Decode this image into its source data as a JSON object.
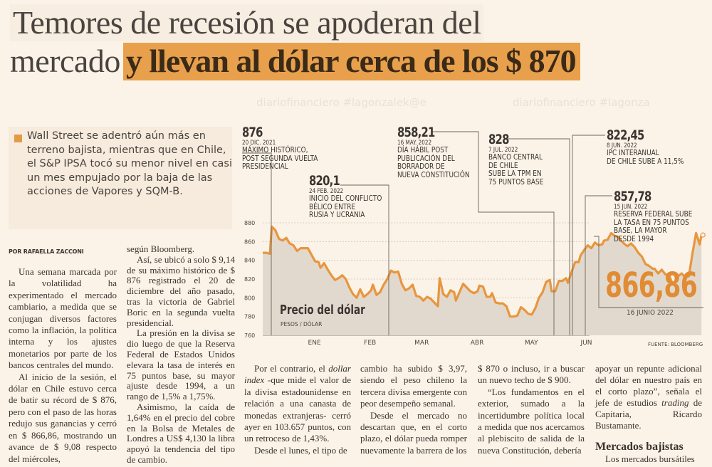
{
  "headline": {
    "line1": "Temores de recesión se apoderan del",
    "line2_plain": "mercado",
    "line2_highlight": "y llevan al dólar cerca de los $ 870"
  },
  "lead": "Wall Street se adentró aún más en terreno bajista, mientras que en Chile, el S&P IPSA tocó su menor nivel en casi un mes empujado por la baja de las acciones de Vapores y SQM-B.",
  "watermark": [
    "diariofinanciero #lagonzalek@e",
    "diariofinanciero #lagonza"
  ],
  "byline": "POR RAFAELLA ZACCONI",
  "columns": {
    "col1": [
      "Una semana marcada por la volatilidad ha experimentado el mercado cambiario, a medida que se conjugan diversos factores como la inflación, la política interna y los ajustes monetarios por parte de los bancos centrales del mundo.",
      "Al inicio de la sesión, el dólar en Chile estuvo cerca de batir su récord de $ 876, pero con el paso de las horas redujo sus ganancias y cerró en $ 866,86, mostrando un avance de $ 9,08 respecto del miércoles,"
    ],
    "col2_first": "según Bloomberg.",
    "col2": [
      "Así, se ubicó a solo $ 9,14 de su máximo histórico de $ 876 registrado el 20 de diciembre del año pasado, tras la victoria de Gabriel Boric en la segunda vuelta presidencial.",
      "La presión en la divisa se dio luego de que la Reserva Federal de Estados Unidos elevara la tasa de interés en 75 puntos base, su mayor ajuste desde 1994, a un rango de 1,5% a 1,75%.",
      "Asimismo, la caída de 1,64% en el precio del cobre en la Bolsa de Metales de Londres a US$ 4,130 la libra apoyó la tendencia del tipo de cambio."
    ],
    "col3": [
      "Por el contrario, el dollar index -que mide el valor de la divisa estadounidense en relación a una canasta de monedas extranjeras- cerró ayer en 103.657 puntos, con un retroceso de 1,43%.",
      "Desde el lunes, el tipo de"
    ],
    "col4_first": "cambio ha subido $ 3,97, siendo el peso chileno la tercera divisa emergente con peor desempeño semanal.",
    "col4": [
      "Desde el mercado no descartan que, en el corto plazo, el dólar pueda romper nuevamente la barrera de los"
    ],
    "col5_first": "$ 870 o incluso, ir a buscar un nuevo techo de $ 900.",
    "col5": [
      "“Los fundamentos en el exterior, sumado a la incertidumbre política local a medida que nos acercamos al plebiscito de salida de la nueva Constitución, debería"
    ],
    "col6_first": "apoyar un repunte adicional del dólar en nuestro país en el corto plazo”, señala el jefe de estudios trading de Capitaria, Ricardo Bustamante.",
    "col6_subhead": "Mercados bajistas",
    "col6": [
      "Los mercados bursátiles"
    ]
  },
  "chart_data": {
    "type": "area",
    "title": "Precio del dólar",
    "ylabel": "PESOS / DÓLAR",
    "source": "FUENTE: BLOOMBERG",
    "ylim": [
      760,
      880
    ],
    "yticks": [
      880,
      860,
      840,
      820,
      800,
      780,
      760
    ],
    "xticks": [
      "ENE",
      "FEB",
      "MAR",
      "ABR",
      "MAY",
      "JUN"
    ],
    "grid": true,
    "x_range_days": [
      -14,
      167
    ],
    "x_tick_days": [
      15,
      46,
      74,
      105,
      135,
      166
    ],
    "series": [
      {
        "name": "Precio del dólar",
        "color": "#e8963e",
        "points": [
          [
            -14,
            848
          ],
          [
            -12,
            848
          ],
          [
            -10,
            847
          ],
          [
            -9,
            876
          ],
          [
            -7,
            872
          ],
          [
            -5,
            863
          ],
          [
            -3,
            861
          ],
          [
            -1,
            864
          ],
          [
            1,
            858
          ],
          [
            3,
            856
          ],
          [
            5,
            850
          ],
          [
            7,
            853
          ],
          [
            9,
            853
          ],
          [
            11,
            853
          ],
          [
            13,
            846
          ],
          [
            15,
            839
          ],
          [
            17,
            838
          ],
          [
            18,
            832
          ],
          [
            20,
            837
          ],
          [
            22,
            830
          ],
          [
            24,
            824
          ],
          [
            26,
            819
          ],
          [
            28,
            821
          ],
          [
            30,
            824
          ],
          [
            32,
            820
          ],
          [
            34,
            811
          ],
          [
            36,
            804
          ],
          [
            38,
            800
          ],
          [
            40,
            809
          ],
          [
            42,
            801
          ],
          [
            44,
            804
          ],
          [
            46,
            808
          ],
          [
            47,
            814
          ],
          [
            49,
            803
          ],
          [
            51,
            806
          ],
          [
            53,
            814
          ],
          [
            55,
            820
          ],
          [
            57,
            829
          ],
          [
            59,
            827
          ],
          [
            61,
            828
          ],
          [
            63,
            815
          ],
          [
            65,
            808
          ],
          [
            67,
            810
          ],
          [
            69,
            814
          ],
          [
            71,
            802
          ],
          [
            73,
            801
          ],
          [
            75,
            797
          ],
          [
            77,
            801
          ],
          [
            79,
            799
          ],
          [
            81,
            795
          ],
          [
            83,
            791
          ],
          [
            84,
            821
          ],
          [
            86,
            804
          ],
          [
            88,
            801
          ],
          [
            90,
            808
          ],
          [
            92,
            806
          ],
          [
            93,
            797
          ],
          [
            95,
            806
          ],
          [
            97,
            815
          ],
          [
            99,
            811
          ],
          [
            101,
            807
          ],
          [
            103,
            805
          ],
          [
            105,
            807
          ],
          [
            106,
            813
          ],
          [
            108,
            812
          ],
          [
            110,
            801
          ],
          [
            112,
            801
          ],
          [
            113,
            805
          ],
          [
            115,
            795
          ],
          [
            117,
            794
          ],
          [
            119,
            794
          ],
          [
            121,
            791
          ],
          [
            123,
            780
          ],
          [
            125,
            780
          ],
          [
            127,
            781
          ],
          [
            129,
            790
          ],
          [
            131,
            787
          ],
          [
            133,
            783
          ],
          [
            135,
            782
          ],
          [
            137,
            789
          ],
          [
            139,
            800
          ],
          [
            141,
            806
          ],
          [
            143,
            817
          ],
          [
            145,
            819
          ],
          [
            146,
            807
          ],
          [
            148,
            807
          ],
          [
            150,
            818
          ],
          [
            152,
            818
          ],
          [
            154,
            821
          ],
          [
            155,
            816
          ],
          [
            157,
            827
          ],
          [
            159,
            838
          ],
          [
            161,
            838
          ],
          [
            162,
            845
          ],
          [
            164,
            851
          ],
          [
            166,
            856
          ],
          [
            168,
            853
          ],
          [
            170,
            859
          ],
          [
            172,
            856
          ],
          [
            174,
            857
          ],
          [
            175,
            861
          ],
          [
            177,
            862
          ],
          [
            179,
            869
          ],
          [
            181,
            866
          ],
          [
            183,
            865
          ],
          [
            184,
            862
          ],
          [
            186,
            858
          ],
          [
            188,
            855
          ],
          [
            190,
            858
          ],
          [
            192,
            854
          ],
          [
            194,
            848
          ],
          [
            196,
            844
          ],
          [
            198,
            836
          ],
          [
            200,
            834
          ],
          [
            202,
            831
          ],
          [
            203,
            831
          ],
          [
            205,
            826
          ],
          [
            207,
            830
          ],
          [
            209,
            825
          ],
          [
            211,
            824
          ],
          [
            213,
            815
          ],
          [
            214,
            815
          ],
          [
            216,
            823
          ],
          [
            218,
            826
          ],
          [
            220,
            822
          ],
          [
            222,
            823
          ],
          [
            224,
            847
          ],
          [
            226,
            869
          ],
          [
            228,
            857
          ],
          [
            229,
            867
          ]
        ]
      }
    ],
    "annotations": [
      {
        "value": "876",
        "date": "20 DIC. 2021",
        "text": [
          "MÁXIMO HISTÓRICO,",
          "POST SEGUNDA VUELTA",
          "PRESIDENCIAL"
        ]
      },
      {
        "value": "820,1",
        "date": "24 FEB. 2022",
        "text": [
          "INICIO DEL CONFLICTO",
          "BÉLICO ENTRE",
          "RUSIA Y UCRANIA"
        ]
      },
      {
        "value": "858,21",
        "date": "16 MAY. 2022",
        "text": [
          "DÍA HÁBIL POST",
          "PUBLICACIÓN DEL",
          "BORRADOR DE",
          "NUEVA CONSTITUCIÓN"
        ]
      },
      {
        "value": "828",
        "date": "7 JUL. 2022",
        "text": [
          "BANCO CENTRAL",
          "DE CHILE",
          "SUBE LA TPM EN",
          "75 PUNTOS BASE"
        ]
      },
      {
        "value": "822,45",
        "date": "8 JUN. 2022",
        "text": [
          "IPC INTERANUAL",
          "DE CHILE SUBE A 11,5%"
        ]
      },
      {
        "value": "857,78",
        "date": "15 JUN. 2022",
        "text": [
          "RESERVA FEDERAL SUBE",
          "LA TASA EN 75 PUNTOS",
          "BASE, LA MAYOR",
          "DESDE 1994"
        ]
      }
    ],
    "last_value": "866,86",
    "last_date": "16 JUNIO 2022"
  }
}
